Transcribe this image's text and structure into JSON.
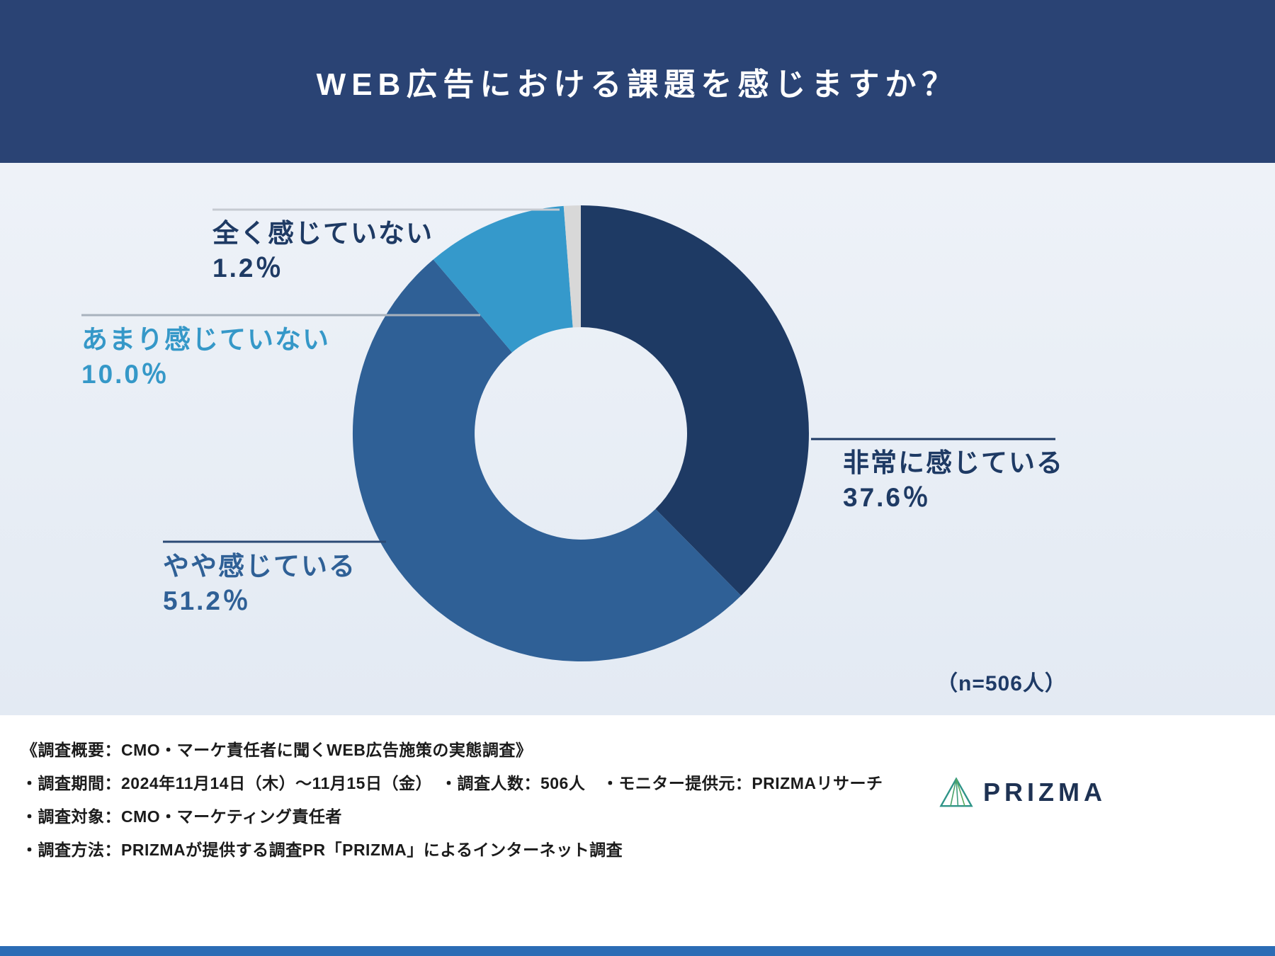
{
  "header": {
    "title": "WEB広告における課題を感じますか？",
    "bg_color": "#2a4374",
    "text_color": "#ffffff"
  },
  "chart_data": {
    "type": "pie",
    "donut": true,
    "title": "WEB広告における課題を感じますか？",
    "n_label": "（n=506人）",
    "start_angle_deg": 0,
    "direction": "clockwise",
    "segments": [
      {
        "label": "非常に感じている",
        "value": 37.6,
        "value_label": "37.6％",
        "color": "#1e3a64",
        "label_color": "#1e3a64",
        "line_color": "#1e3a64"
      },
      {
        "label": "やや感じている",
        "value": 51.2,
        "value_label": "51.2％",
        "color": "#2f6096",
        "label_color": "#2f6096",
        "line_color": "#2b4a75"
      },
      {
        "label": "あまり感じていない",
        "value": 10.0,
        "value_label": "10.0％",
        "color": "#3599cb",
        "label_color": "#3598c8",
        "line_color": "#a8b2bd"
      },
      {
        "label": "全く感じていない",
        "value": 1.2,
        "value_label": "1.2％",
        "color": "#d8d8d8",
        "label_color": "#1e3a64",
        "line_color": "#c6cbd2"
      }
    ]
  },
  "footer": {
    "lines": [
      "《調査概要：CMO・マーケ責任者に聞くWEB広告施策の実態調査》",
      "・調査期間：2024年11月14日（木）〜11月15日（金）　・調査人数：506人　・モニター提供元：PRIZMAリサーチ",
      "・調査対象：CMO・マーケティング責任者",
      "・調査方法：PRIZMAが提供する調査PR「PRIZMA」によるインターネット調査"
    ],
    "logo_text": "PRIZMA"
  },
  "theme": {
    "accent_bar_color": "#2b6cb5"
  }
}
